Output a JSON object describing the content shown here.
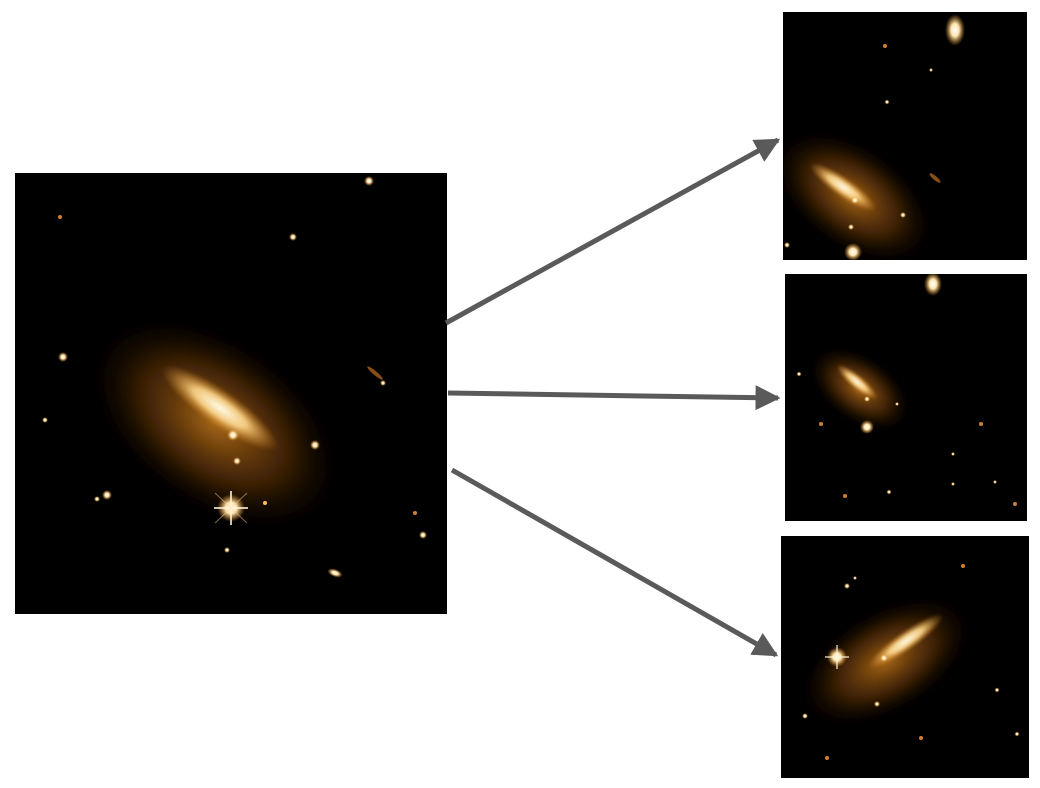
{
  "colors": {
    "background": "#ffffff",
    "panel_background": "#000000",
    "galaxy_glow": "#e08a1e",
    "galaxy_core": "#fff3d0",
    "arrow": "#5a5a5a"
  },
  "panels": {
    "source": {
      "name": "source-galaxy-image"
    },
    "views": [
      {
        "name": "lensed-image-1"
      },
      {
        "name": "lensed-image-2"
      },
      {
        "name": "lensed-image-3"
      }
    ]
  },
  "arrows": [
    {
      "from": "source-galaxy-image",
      "to": "lensed-image-1"
    },
    {
      "from": "source-galaxy-image",
      "to": "lensed-image-2"
    },
    {
      "from": "source-galaxy-image",
      "to": "lensed-image-3"
    }
  ]
}
